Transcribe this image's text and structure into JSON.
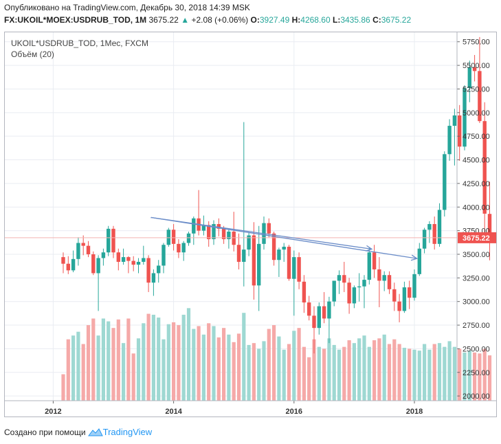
{
  "header": {
    "published": "Опубликовано на TradingView.com, Декабрь 30, 2018 14:39 MSK",
    "symbol": "FX:UKOIL*MOEX:USDRUB_TOD, 1M",
    "last": "3675.22",
    "change": "+2.08 (+0.06%)",
    "o_label": "O:",
    "o_value": "3927.49",
    "h_label": "H:",
    "h_value": "4268.60",
    "l_label": "L:",
    "l_value": "3435.86",
    "c_label": "C:",
    "c_value": "3675.22"
  },
  "legend": {
    "series": "UKOIL*USDRUB_TOD, 1Мес, FXCM",
    "volume": "Объём (20)"
  },
  "footer": {
    "created_with": "Создано при помощи",
    "brand": "TradingView"
  },
  "colors": {
    "up": "#26a69a",
    "down": "#ef5350",
    "up_volume": "#9ed8d2",
    "down_volume": "#f5a9a8",
    "grid": "#e9ecf2",
    "trendline": "#6a8cc8",
    "price_line": "#f4b3b1",
    "price_label_bg": "#ef5350"
  },
  "chart_data": {
    "type": "candlestick",
    "title": "UKOIL*USDRUB_TOD, 1Мес, FXCM",
    "ylim": [
      1950,
      5850
    ],
    "y_ticks": [
      2000,
      2250,
      2500,
      2750,
      3000,
      3250,
      3500,
      3750,
      4000,
      4250,
      4500,
      4750,
      5000,
      5250,
      5500,
      5750
    ],
    "y_tick_labels": [
      "2000.00",
      "2250.00",
      "2500.00",
      "2750.00",
      "3000.00",
      "3250.00",
      "3500.00",
      "3750.00",
      "4000.00",
      "4250.00",
      "4500.00",
      "4750.00",
      "5000.00",
      "5250.00",
      "5500.00",
      "5750.00"
    ],
    "x_ticks": [
      {
        "index": 0,
        "label": "2012"
      },
      {
        "index": 24,
        "label": "2014"
      },
      {
        "index": 48,
        "label": "2016"
      },
      {
        "index": 72,
        "label": "2018"
      }
    ],
    "first_bar_offset_months": 2,
    "last_price": 3675.22,
    "last_price_label": "3675.22",
    "volume_ref": 3400,
    "ohlc": [
      [
        3470,
        3520,
        3300,
        3400
      ],
      [
        3400,
        3480,
        3290,
        3330
      ],
      [
        3330,
        3540,
        3310,
        3450
      ],
      [
        3450,
        3680,
        3380,
        3620
      ],
      [
        3620,
        3700,
        3490,
        3590
      ],
      [
        3590,
        3640,
        3470,
        3500
      ],
      [
        3500,
        3530,
        3280,
        3300
      ],
      [
        3300,
        3490,
        2900,
        3460
      ],
      [
        3460,
        3560,
        3380,
        3520
      ],
      [
        3520,
        3800,
        3480,
        3770
      ],
      [
        3770,
        3800,
        3460,
        3520
      ],
      [
        3520,
        3560,
        3330,
        3420
      ],
      [
        3420,
        3560,
        3390,
        3470
      ],
      [
        3470,
        3480,
        3300,
        3430
      ],
      [
        3430,
        3480,
        3320,
        3390
      ],
      [
        3390,
        3460,
        3300,
        3420
      ],
      [
        3420,
        3590,
        3390,
        3460
      ],
      [
        3460,
        3490,
        3100,
        3200
      ],
      [
        3200,
        3340,
        3060,
        3300
      ],
      [
        3300,
        3440,
        3200,
        3380
      ],
      [
        3380,
        3620,
        3300,
        3600
      ],
      [
        3600,
        3780,
        3580,
        3760
      ],
      [
        3760,
        3820,
        3540,
        3610
      ],
      [
        3610,
        3660,
        3460,
        3520
      ],
      [
        3520,
        3640,
        3430,
        3620
      ],
      [
        3620,
        3740,
        3590,
        3720
      ],
      [
        3720,
        3900,
        3600,
        3880
      ],
      [
        3880,
        4180,
        3700,
        3750
      ],
      [
        3750,
        3910,
        3700,
        3810
      ],
      [
        3810,
        3850,
        3580,
        3660
      ],
      [
        3660,
        3860,
        3600,
        3820
      ],
      [
        3820,
        3880,
        3690,
        3770
      ],
      [
        3770,
        3800,
        3610,
        3660
      ],
      [
        3660,
        3760,
        3560,
        3740
      ],
      [
        3740,
        3950,
        3530,
        3600
      ],
      [
        3600,
        3720,
        3340,
        3420
      ],
      [
        3420,
        4900,
        3160,
        3550
      ],
      [
        3550,
        3730,
        3480,
        3700
      ],
      [
        3700,
        3840,
        3020,
        3170
      ],
      [
        3170,
        3800,
        2900,
        3610
      ],
      [
        3610,
        3900,
        3550,
        3830
      ],
      [
        3830,
        3880,
        3680,
        3720
      ],
      [
        3720,
        3740,
        3380,
        3440
      ],
      [
        3440,
        3570,
        3260,
        3550
      ],
      [
        3550,
        3620,
        3420,
        3580
      ],
      [
        3580,
        3600,
        3220,
        3240
      ],
      [
        3240,
        3540,
        2850,
        3470
      ],
      [
        3470,
        3520,
        3130,
        3210
      ],
      [
        3210,
        3280,
        2880,
        2990
      ],
      [
        2990,
        3060,
        2800,
        2850
      ],
      [
        2850,
        2950,
        2450,
        2720
      ],
      [
        2720,
        2990,
        2650,
        2950
      ],
      [
        2950,
        3100,
        2770,
        2820
      ],
      [
        2820,
        3050,
        2560,
        3000
      ],
      [
        3000,
        3220,
        2950,
        3220
      ],
      [
        3220,
        3330,
        3080,
        3280
      ],
      [
        3280,
        3420,
        3100,
        3200
      ],
      [
        3200,
        3250,
        2870,
        2980
      ],
      [
        2980,
        3170,
        2930,
        3150
      ],
      [
        3150,
        3300,
        3000,
        3160
      ],
      [
        3160,
        3280,
        2930,
        3230
      ],
      [
        3230,
        3570,
        3180,
        3520
      ],
      [
        3520,
        3600,
        3250,
        3340
      ],
      [
        3340,
        3470,
        2940,
        3220
      ],
      [
        3220,
        3320,
        3110,
        3280
      ],
      [
        3280,
        3320,
        3080,
        3130
      ],
      [
        3130,
        3200,
        2900,
        3000
      ],
      [
        3000,
        3080,
        2780,
        2900
      ],
      [
        2900,
        3210,
        2880,
        3150
      ],
      [
        3150,
        3220,
        2920,
        3040
      ],
      [
        3040,
        3340,
        3010,
        3290
      ],
      [
        3290,
        3620,
        3270,
        3560
      ],
      [
        3560,
        3780,
        3510,
        3760
      ],
      [
        3760,
        3850,
        3620,
        3820
      ],
      [
        3820,
        3900,
        3550,
        3610
      ],
      [
        3610,
        4040,
        3580,
        3970
      ],
      [
        3970,
        4590,
        3900,
        4560
      ],
      [
        4560,
        4930,
        4490,
        4860
      ],
      [
        4860,
        5040,
        4440,
        4970
      ],
      [
        4970,
        5080,
        4490,
        4640
      ],
      [
        4640,
        5290,
        4600,
        5260
      ],
      [
        5260,
        5550,
        5110,
        5480
      ],
      [
        5480,
        5610,
        5330,
        5440
      ],
      [
        5440,
        5800,
        4890,
        4910
      ],
      [
        4910,
        5110,
        3700,
        3930
      ],
      [
        3927.49,
        4268.6,
        3435.86,
        3675.22
      ]
    ],
    "volume": [
      2230,
      2600,
      2640,
      2680,
      2550,
      2750,
      2820,
      2640,
      2820,
      2790,
      2720,
      2810,
      2560,
      2820,
      2450,
      2610,
      2770,
      2870,
      2860,
      2830,
      2600,
      2760,
      2780,
      2750,
      2860,
      2930,
      2710,
      2740,
      2650,
      2770,
      2740,
      2620,
      2720,
      2650,
      2570,
      2660,
      2880,
      2540,
      2560,
      2500,
      2580,
      2710,
      2750,
      2630,
      2490,
      2550,
      2690,
      2720,
      2520,
      2410,
      2600,
      2520,
      2500,
      2610,
      2540,
      2490,
      2520,
      2590,
      2560,
      2610,
      2640,
      2520,
      2590,
      2610,
      2650,
      2550,
      2600,
      2550,
      2510,
      2500,
      2490,
      2480,
      2550,
      2490,
      2550,
      2560,
      2520,
      2580,
      2520,
      2500,
      2460,
      2480,
      2460,
      2450,
      2500,
      2430
    ]
  }
}
